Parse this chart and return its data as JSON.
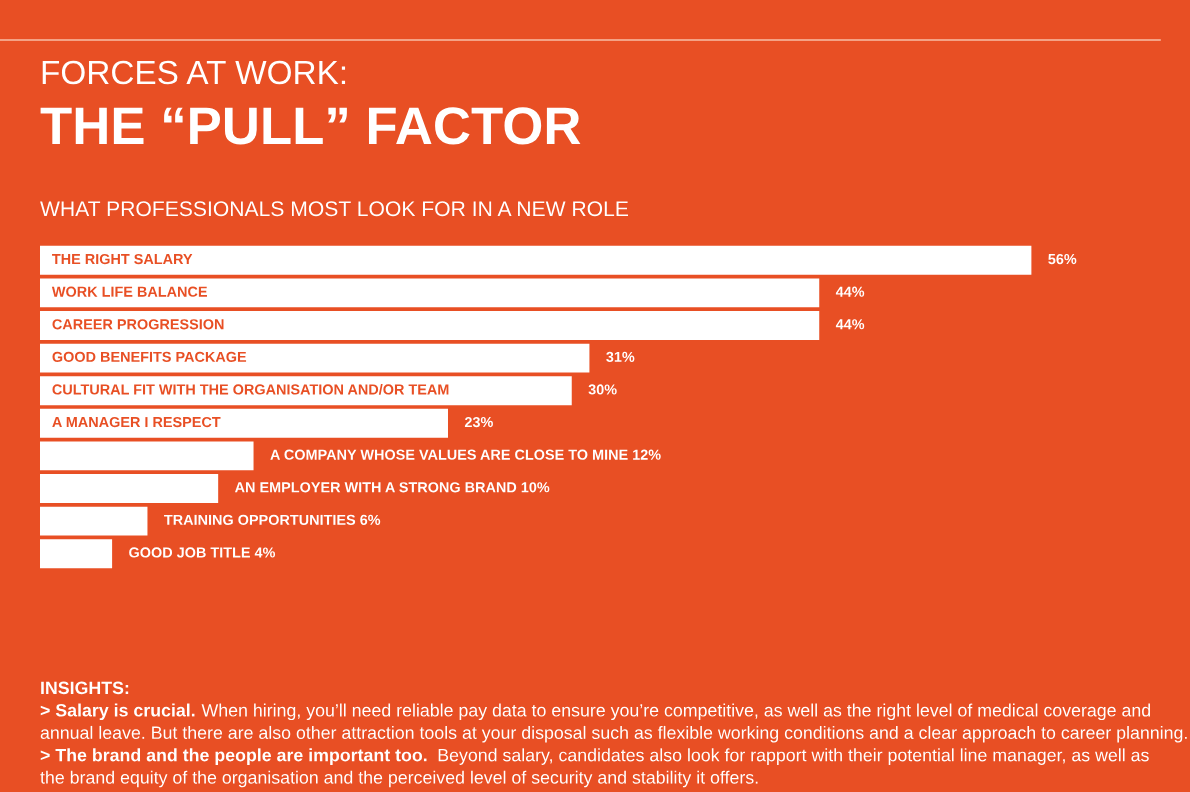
{
  "chart_data": {
    "type": "bar",
    "orientation": "horizontal",
    "title": "FORCES AT WORK:",
    "subtitle": "THE “PULL” FACTOR",
    "categories": [
      "THE RIGHT SALARY",
      "WORK LIFE BALANCE",
      "CAREER PROGRESSION",
      "GOOD BENEFITS PACKAGE",
      "CULTURAL FIT WITH THE ORGANISATION AND/OR TEAM",
      "A MANAGER I RESPECT",
      "A COMPANY WHOSE VALUES ARE CLOSE TO MINE",
      "AN EMPLOYER WITH A STRONG BRAND",
      "TRAINING OPPORTUNITIES",
      "GOOD JOB TITLE"
    ],
    "values": [
      56,
      44,
      44,
      31,
      30,
      23,
      12,
      10,
      6,
      4
    ],
    "value_labels": [
      "56%",
      "44%",
      "44%",
      "31%",
      "30%",
      "23%",
      "12%",
      "10%",
      "6%",
      "4%"
    ],
    "color": "#ffffff",
    "annotations": [
      "WHAT PROFESSIONALS MOST LOOK FOR IN A NEW ROLE",
      "INSIGHTS:",
      "> Salary is crucial.",
      "When hiring, you’ll need reliable pay data to ensure you’re competitive, as well as the right level of medical coverage and",
      "annual leave. But there are also other attraction tools at your disposal such as flexible working conditions and a clear approach to career planning.",
      "> The brand and the people are important too.",
      "Beyond salary, candidates also look for rapport with their potential line manager, as well as",
      "the brand equity of the organisation and the perceived level of security and stability it offers."
    ]
  }
}
